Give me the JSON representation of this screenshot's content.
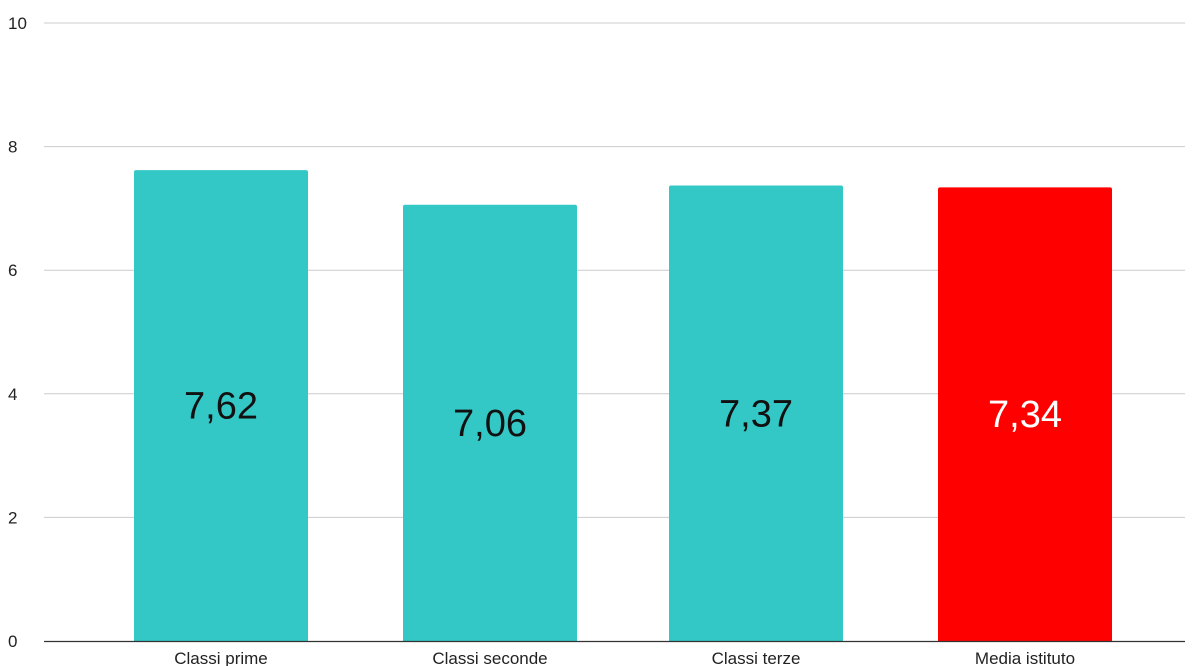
{
  "chart_data": {
    "type": "bar",
    "title": "",
    "xlabel": "",
    "ylabel": "",
    "categories": [
      "Classi prime",
      "Classi seconde",
      "Classi terze",
      "Media istituto"
    ],
    "values": [
      7.62,
      7.06,
      7.37,
      7.34
    ],
    "data_labels": [
      "7,62",
      "7,06",
      "7,37",
      "7,34"
    ],
    "bar_colors": [
      "#33c8c6",
      "#33c8c6",
      "#33c8c6",
      "#ff0000"
    ],
    "data_label_colors": [
      "#111111",
      "#111111",
      "#111111",
      "#ffffff"
    ],
    "ylim": [
      0,
      10
    ],
    "yticks": [
      0,
      2,
      4,
      6,
      8,
      10
    ],
    "ytick_labels": [
      "0",
      "2",
      "4",
      "6",
      "8",
      "10"
    ],
    "grid": true,
    "gridline_color": "#cccccc",
    "axis_color": "#333333",
    "legend": "none"
  }
}
